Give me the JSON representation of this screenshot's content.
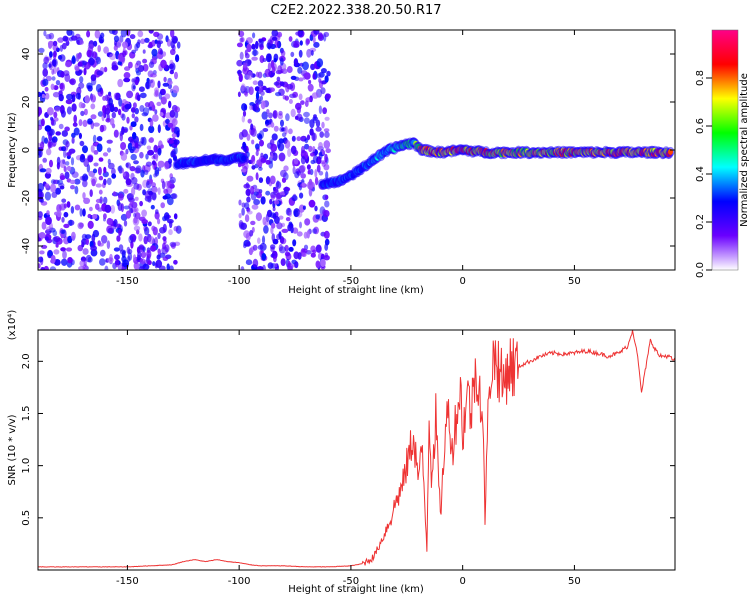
{
  "figure_title": "C2E2.2022.338.20.50.R17",
  "chart_data": [
    {
      "type": "heatmap",
      "title": "",
      "xlabel": "Height of straight line (km)",
      "ylabel": "Frequency (Hz)",
      "xlim": [
        -190,
        95
      ],
      "ylim": [
        -50,
        50
      ],
      "x_ticks": [
        -150,
        -100,
        -50,
        0,
        50
      ],
      "y_ticks": [
        -40,
        -20,
        0,
        20,
        40
      ],
      "x_tick_labels": [
        "-150",
        "-100",
        "-50",
        "0",
        "50"
      ],
      "y_tick_labels": [
        "-40",
        "-20",
        "0",
        "20",
        "40"
      ],
      "colorbar": {
        "label": "Normalized spectral amplitude",
        "range": [
          0.0,
          1.0
        ],
        "ticks": [
          0.0,
          0.2,
          0.4,
          0.6,
          0.8
        ],
        "tick_labels": [
          "0.0",
          "0.2",
          "0.4",
          "0.6",
          "0.8"
        ],
        "colormap": [
          "#ffffff",
          "#6a00ff",
          "#0000ff",
          "#00ffff",
          "#00ff00",
          "#ffff00",
          "#ff0000",
          "#ff0088"
        ]
      },
      "noise_regions_km": [
        [
          -190,
          -127
        ],
        [
          -100,
          -60
        ]
      ],
      "signal_track": [
        {
          "x": -128,
          "y": -6,
          "amp": 0.3
        },
        {
          "x": -120,
          "y": -5,
          "amp": 0.35
        },
        {
          "x": -112,
          "y": -4,
          "amp": 0.3
        },
        {
          "x": -104,
          "y": -4,
          "amp": 0.35
        },
        {
          "x": -98,
          "y": -3,
          "amp": 0.3
        },
        {
          "x": -63,
          "y": -14,
          "amp": 0.3
        },
        {
          "x": -55,
          "y": -13,
          "amp": 0.35
        },
        {
          "x": -47,
          "y": -9,
          "amp": 0.35
        },
        {
          "x": -40,
          "y": -4,
          "amp": 0.4
        },
        {
          "x": -33,
          "y": 0,
          "amp": 0.45
        },
        {
          "x": -27,
          "y": 2,
          "amp": 0.5
        },
        {
          "x": -22,
          "y": 3,
          "amp": 0.55
        },
        {
          "x": -18,
          "y": 0,
          "amp": 0.8
        },
        {
          "x": -10,
          "y": -1,
          "amp": 0.85
        },
        {
          "x": 0,
          "y": 0,
          "amp": 0.85
        },
        {
          "x": 10,
          "y": -1,
          "amp": 0.8
        },
        {
          "x": 25,
          "y": -1,
          "amp": 0.75
        },
        {
          "x": 40,
          "y": -1,
          "amp": 0.8
        },
        {
          "x": 55,
          "y": -1,
          "amp": 0.8
        },
        {
          "x": 70,
          "y": -1,
          "amp": 0.85
        },
        {
          "x": 85,
          "y": -1,
          "amp": 0.85
        },
        {
          "x": 93,
          "y": -1,
          "amp": 0.85
        }
      ]
    },
    {
      "type": "line",
      "title": "",
      "xlabel": "Height of straight line (km)",
      "ylabel": "SNR (10 * v/v)",
      "y_scale_label": "(x10⁴)",
      "xlim": [
        -190,
        95
      ],
      "ylim": [
        0,
        2.3
      ],
      "x_ticks": [
        -150,
        -100,
        -50,
        0,
        50
      ],
      "y_ticks": [
        0.5,
        1.0,
        1.5,
        2.0
      ],
      "x_tick_labels": [
        "-150",
        "-100",
        "-50",
        "0",
        "50"
      ],
      "y_tick_labels": [
        "0.5",
        "1.0",
        "1.5",
        "2.0"
      ],
      "line_color": "#ee3333",
      "series": [
        {
          "x": [
            -190,
            -170,
            -150,
            -130,
            -125,
            -120,
            -115,
            -110,
            -105,
            -100,
            -95,
            -90,
            -80,
            -70,
            -60,
            -50,
            -45,
            -40,
            -37,
            -35,
            -32,
            -30,
            -27,
            -25,
            -22,
            -20,
            -18,
            -16,
            -15,
            -14,
            -12,
            -10,
            -8,
            -6,
            -5,
            -3,
            -1,
            0,
            2,
            4,
            5,
            7,
            9,
            10,
            12,
            15,
            18,
            20,
            25,
            30,
            35,
            40,
            45,
            50,
            55,
            60,
            65,
            70,
            74,
            76,
            78,
            80,
            84,
            88,
            92,
            95
          ],
          "y": [
            0.03,
            0.03,
            0.03,
            0.05,
            0.08,
            0.1,
            0.08,
            0.1,
            0.08,
            0.07,
            0.05,
            0.04,
            0.04,
            0.03,
            0.03,
            0.04,
            0.06,
            0.12,
            0.25,
            0.35,
            0.5,
            0.65,
            0.8,
            1.0,
            1.3,
            0.9,
            1.1,
            0.2,
            1.55,
            0.9,
            1.45,
            0.5,
            1.25,
            1.6,
            1.1,
            1.45,
            1.75,
            1.3,
            1.7,
            1.5,
            1.85,
            1.9,
            1.4,
            0.5,
            1.9,
            2.05,
            1.75,
            1.95,
            1.95,
            2.0,
            2.05,
            2.08,
            2.07,
            2.08,
            2.1,
            2.08,
            2.05,
            2.08,
            2.15,
            2.3,
            2.1,
            1.7,
            2.2,
            2.05,
            2.05,
            2.0
          ]
        }
      ]
    }
  ]
}
